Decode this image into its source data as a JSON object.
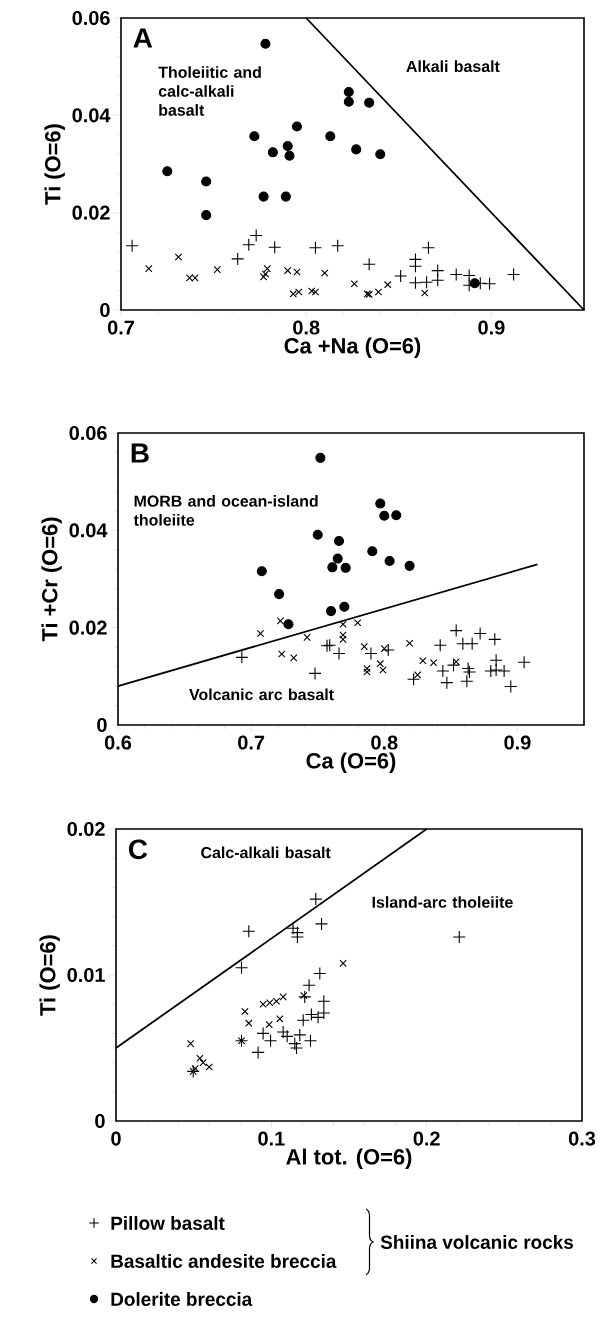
{
  "chart_data": [
    {
      "type": "scatter",
      "title": "A",
      "xlabel": "Ca +Na (O=6)",
      "ylabel": "Ti (O=6)",
      "xlim": [
        0.7,
        0.95
      ],
      "ylim": [
        0,
        0.06
      ],
      "xticks": [
        0.7,
        0.8,
        0.9
      ],
      "yticks": [
        0,
        0.02,
        0.04,
        0.06
      ],
      "annotations": [
        "Tholeiitic and calc-alkali basalt",
        "Alkali basalt"
      ],
      "series": [
        {
          "color": "#000000",
          "marker": "plus",
          "x": [
            0.706,
            0.773,
            0.769,
            0.783,
            0.805,
            0.817,
            0.866,
            0.763,
            0.834,
            0.859,
            0.859,
            0.851,
            0.859,
            0.871,
            0.871,
            0.865,
            0.881,
            0.888,
            0.888,
            0.894,
            0.899,
            0.912
          ],
          "values": [
            0.0132,
            0.0153,
            0.0134,
            0.0129,
            0.0128,
            0.0132,
            0.0128,
            0.0105,
            0.0094,
            0.0104,
            0.009,
            0.007,
            0.0056,
            0.0081,
            0.0061,
            0.0057,
            0.0073,
            0.0071,
            0.0051,
            0.0055,
            0.0054,
            0.0073
          ]
        },
        {
          "color": "#000000",
          "marker": "cross",
          "x": [
            0.715,
            0.731,
            0.737,
            0.74,
            0.752,
            0.777,
            0.779,
            0.778,
            0.79,
            0.795,
            0.793,
            0.796,
            0.803,
            0.805,
            0.81,
            0.826,
            0.833,
            0.834,
            0.839,
            0.844,
            0.864
          ],
          "values": [
            0.0085,
            0.0109,
            0.0066,
            0.0066,
            0.0083,
            0.0068,
            0.0085,
            0.0074,
            0.0081,
            0.0078,
            0.0033,
            0.0037,
            0.0039,
            0.0037,
            0.0076,
            0.0054,
            0.0033,
            0.0032,
            0.0037,
            0.0052,
            0.0035
          ]
        },
        {
          "color": "#000000",
          "marker": "circle",
          "x": [
            0.778,
            0.823,
            0.823,
            0.834,
            0.795,
            0.772,
            0.813,
            0.79,
            0.782,
            0.791,
            0.827,
            0.84,
            0.725,
            0.746,
            0.777,
            0.789,
            0.746,
            0.891
          ],
          "values": [
            0.0547,
            0.0448,
            0.0428,
            0.0426,
            0.0377,
            0.0357,
            0.0357,
            0.0337,
            0.0324,
            0.0317,
            0.033,
            0.032,
            0.0285,
            0.0264,
            0.0233,
            0.0233,
            0.0195,
            0.0055
          ]
        },
        {
          "type": "line",
          "color": "#000000",
          "marker": "none",
          "x": [
            0.8,
            0.95
          ],
          "values": [
            0.06,
            0
          ]
        }
      ]
    },
    {
      "type": "scatter",
      "title": "B",
      "xlabel": "Ca (O=6)",
      "ylabel": "Ti +Cr (O=6)",
      "xlim": [
        0.6,
        0.95
      ],
      "ylim": [
        0,
        0.06
      ],
      "xticks": [
        0.6,
        0.7,
        0.8,
        0.9
      ],
      "yticks": [
        0,
        0.02,
        0.04,
        0.06
      ],
      "annotations": [
        "MORB and ocean-island tholeiite",
        "Volcanic arc basalt"
      ],
      "series": [
        {
          "color": "#000000",
          "marker": "plus",
          "x": [
            0.693,
            0.748,
            0.757,
            0.759,
            0.766,
            0.79,
            0.803,
            0.822,
            0.842,
            0.844,
            0.847,
            0.854,
            0.859,
            0.866,
            0.872,
            0.883,
            0.852,
            0.863,
            0.862,
            0.864,
            0.884,
            0.88,
            0.89,
            0.895,
            0.905,
            0.884
          ],
          "values": [
            0.0139,
            0.0106,
            0.0163,
            0.0164,
            0.0147,
            0.0147,
            0.0154,
            0.0094,
            0.0164,
            0.0111,
            0.0087,
            0.0194,
            0.0167,
            0.0167,
            0.0188,
            0.0176,
            0.0123,
            0.0116,
            0.009,
            0.0109,
            0.0133,
            0.0111,
            0.0111,
            0.0079,
            0.0129,
            0.0113
          ]
        },
        {
          "color": "#000000",
          "marker": "cross",
          "x": [
            0.707,
            0.722,
            0.723,
            0.732,
            0.742,
            0.769,
            0.78,
            0.769,
            0.769,
            0.785,
            0.787,
            0.787,
            0.797,
            0.799,
            0.8,
            0.819,
            0.825,
            0.829,
            0.837,
            0.854
          ],
          "values": [
            0.0188,
            0.0214,
            0.0146,
            0.0138,
            0.018,
            0.0207,
            0.021,
            0.0176,
            0.0185,
            0.0161,
            0.0116,
            0.0109,
            0.0126,
            0.0113,
            0.0157,
            0.0168,
            0.0103,
            0.0132,
            0.0128,
            0.013
          ]
        },
        {
          "color": "#000000",
          "marker": "circle",
          "x": [
            0.752,
            0.797,
            0.8,
            0.809,
            0.75,
            0.766,
            0.791,
            0.765,
            0.761,
            0.771,
            0.804,
            0.819,
            0.708,
            0.721,
            0.76,
            0.77,
            0.728
          ],
          "values": [
            0.0549,
            0.0455,
            0.043,
            0.0431,
            0.0391,
            0.0378,
            0.0357,
            0.0342,
            0.0324,
            0.0323,
            0.0337,
            0.0327,
            0.0316,
            0.0269,
            0.0234,
            0.0243,
            0.0207
          ]
        },
        {
          "type": "line",
          "color": "#000000",
          "marker": "none",
          "x": [
            0.6,
            0.915
          ],
          "values": [
            0.008,
            0.033
          ]
        }
      ]
    },
    {
      "type": "scatter",
      "title": "C",
      "xlabel": "Al tot. (O=6)",
      "ylabel": "Ti (O=6)",
      "xlim": [
        0,
        0.3
      ],
      "ylim": [
        0,
        0.02
      ],
      "xticks": [
        0,
        0.1,
        0.2,
        0.3
      ],
      "yticks": [
        0,
        0.01,
        0.02
      ],
      "legend": "bottom",
      "legend_title": "Shiina volcanic rocks",
      "annotations": [
        "Calc-alkali basalt",
        "Island-arc tholeiite"
      ],
      "series": [
        {
          "name": "Pillow basalt",
          "color": "#000000",
          "marker": "plus",
          "x": [
            0.1286,
            0.1323,
            0.0855,
            0.114,
            0.1168,
            0.1168,
            0.0808,
            0.1312,
            0.221,
            0.1243,
            0.1215,
            0.1338,
            0.1205,
            0.1258,
            0.1301,
            0.1338,
            0.0947,
            0.0995,
            0.1076,
            0.1102,
            0.1183,
            0.1151,
            0.1162,
            0.1252,
            0.0915,
            0.0808,
            0.0497
          ],
          "values": [
            0.0152,
            0.0135,
            0.013,
            0.0132,
            0.0129,
            0.0126,
            0.0105,
            0.0101,
            0.0126,
            0.0093,
            0.0085,
            0.0082,
            0.0069,
            0.0073,
            0.0071,
            0.0074,
            0.006,
            0.0055,
            0.0061,
            0.0058,
            0.0059,
            0.0053,
            0.005,
            0.0055,
            0.0047,
            0.0055,
            0.0034
          ]
        },
        {
          "name": "Basaltic andesite breccia",
          "color": "#000000",
          "marker": "cross",
          "x": [
            0.1462,
            0.083,
            0.0855,
            0.0947,
            0.099,
            0.1033,
            0.1076,
            0.0986,
            0.1055,
            0.1209,
            0.0808,
            0.048,
            0.054,
            0.0561,
            0.06,
            0.0497,
            0.051
          ],
          "values": [
            0.0108,
            0.0075,
            0.0067,
            0.008,
            0.0081,
            0.0082,
            0.0085,
            0.0066,
            0.007,
            0.0086,
            0.0055,
            0.0053,
            0.0043,
            0.004,
            0.0037,
            0.0034,
            0.0036
          ]
        },
        {
          "name": "Dolerite breccia",
          "color": "#000000",
          "marker": "circle"
        },
        {
          "type": "line",
          "color": "#000000",
          "marker": "none",
          "x": [
            0,
            0.2
          ],
          "values": [
            0.005,
            0.02
          ]
        }
      ]
    }
  ]
}
